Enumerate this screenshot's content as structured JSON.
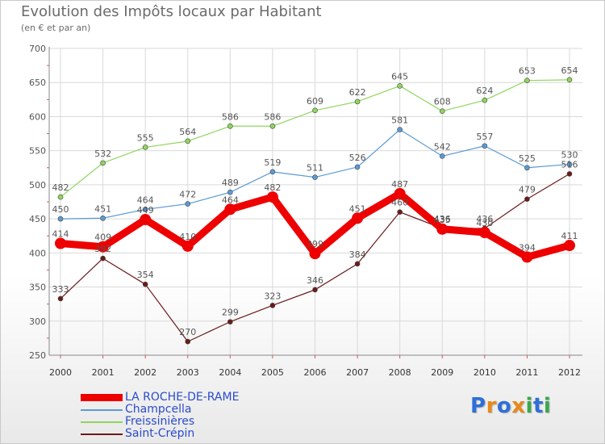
{
  "title": "Evolution des Impôts locaux par Habitant",
  "subtitle": "(en € et par an)",
  "chart_data": {
    "type": "line",
    "title": "Evolution des Impôts locaux par Habitant",
    "subtitle": "(en € et par an)",
    "xlabel": "",
    "ylabel": "",
    "x": [
      "2000",
      "2001",
      "2002",
      "2003",
      "2004",
      "2005",
      "2006",
      "2007",
      "2008",
      "2009",
      "2010",
      "2011",
      "2012"
    ],
    "ylim": [
      250,
      700
    ],
    "yticks": [
      250,
      300,
      350,
      400,
      450,
      500,
      550,
      600,
      650,
      700
    ],
    "grid": true,
    "legend_position": "bottom-left",
    "series": [
      {
        "name": "Saint-Crépin",
        "color": "#6b1a1a",
        "values": [
          333,
          392,
          354,
          270,
          299,
          323,
          346,
          384,
          460,
          436,
          436,
          479,
          516
        ]
      },
      {
        "name": "Freissinières",
        "color": "#8fd65e",
        "values": [
          482,
          532,
          555,
          564,
          586,
          586,
          609,
          622,
          645,
          608,
          624,
          653,
          654
        ]
      },
      {
        "name": "Champcella",
        "color": "#5b9bd5",
        "values": [
          450,
          451,
          464,
          472,
          489,
          519,
          511,
          526,
          581,
          542,
          557,
          525,
          530
        ]
      },
      {
        "name": "LA ROCHE-DE-RAME",
        "color": "#ee0000",
        "values": [
          414,
          409,
          449,
          410,
          464,
          482,
          399,
          451,
          487,
          435,
          430,
          394,
          411
        ]
      }
    ]
  },
  "legend": {
    "items": [
      {
        "label": "LA ROCHE-DE-RAME",
        "color": "#ee0000",
        "thickness": "thick"
      },
      {
        "label": "Champcella",
        "color": "#5b9bd5",
        "thickness": "thin"
      },
      {
        "label": "Freissinières",
        "color": "#8fd65e",
        "thickness": "thin"
      },
      {
        "label": "Saint-Crépin",
        "color": "#6b1a1a",
        "thickness": "thin"
      }
    ]
  },
  "logo": {
    "letters": [
      "P",
      "r",
      "o",
      "x",
      "i",
      "t",
      "i"
    ],
    "colors": [
      "#2e6fd8",
      "#e8891a",
      "#2e6fd8",
      "#e8891a",
      "#3aa84a",
      "#2e6fd8",
      "#3aa84a"
    ]
  }
}
